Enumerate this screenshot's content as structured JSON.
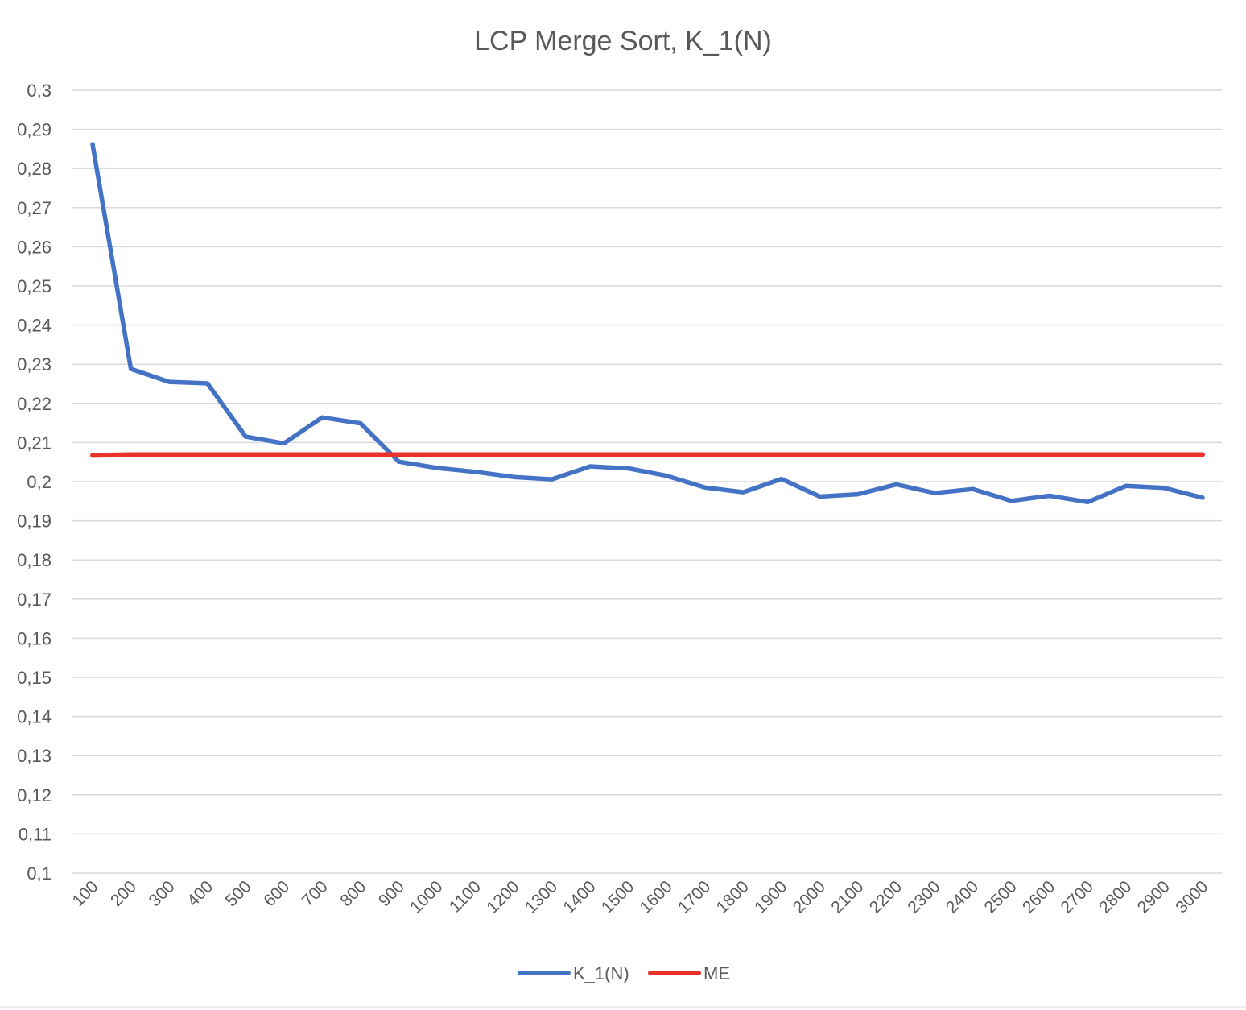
{
  "chart_data": {
    "type": "line",
    "title": "LCP Merge Sort, K_1(N)",
    "xlabel": "",
    "ylabel": "",
    "categories": [
      "100",
      "200",
      "300",
      "400",
      "500",
      "600",
      "700",
      "800",
      "900",
      "1000",
      "1100",
      "1200",
      "1300",
      "1400",
      "1500",
      "1600",
      "1700",
      "1800",
      "1900",
      "2000",
      "2100",
      "2200",
      "2300",
      "2400",
      "2500",
      "2600",
      "2700",
      "2800",
      "2900",
      "3000"
    ],
    "y_tick_labels": [
      "0,3",
      "0,29",
      "0,28",
      "0,27",
      "0,26",
      "0,25",
      "0,24",
      "0,23",
      "0,22",
      "0,21",
      "0,2",
      "0,19",
      "0,18",
      "0,17",
      "0,16",
      "0,15",
      "0,14",
      "0,13",
      "0,12",
      "0,11",
      "0,1"
    ],
    "ylim": [
      0.1,
      0.3
    ],
    "y_step": 0.01,
    "grid": true,
    "legend_position": "bottom",
    "series": [
      {
        "name": "K_1(N)",
        "color": "#4472C4",
        "values": [
          0.2862,
          0.2288,
          0.2255,
          0.2251,
          0.2115,
          0.2098,
          0.2164,
          0.2149,
          0.2051,
          0.2035,
          0.2025,
          0.2012,
          0.2006,
          0.2039,
          0.2034,
          0.2015,
          0.1985,
          0.1973,
          0.2007,
          0.1962,
          0.1968,
          0.1993,
          0.1971,
          0.1981,
          0.1951,
          0.1964,
          0.1948,
          0.1989,
          0.1984,
          0.1959
        ]
      },
      {
        "name": "ME",
        "color": "#E8322A",
        "values": [
          0.2067,
          0.2069,
          0.2069,
          0.2069,
          0.2069,
          0.2069,
          0.2069,
          0.2069,
          0.2069,
          0.2069,
          0.2069,
          0.2069,
          0.2069,
          0.2069,
          0.2069,
          0.2069,
          0.2069,
          0.2069,
          0.2069,
          0.2069,
          0.2069,
          0.2069,
          0.2069,
          0.2069,
          0.2069,
          0.2069,
          0.2069,
          0.2069,
          0.2069,
          0.2069
        ]
      }
    ]
  }
}
